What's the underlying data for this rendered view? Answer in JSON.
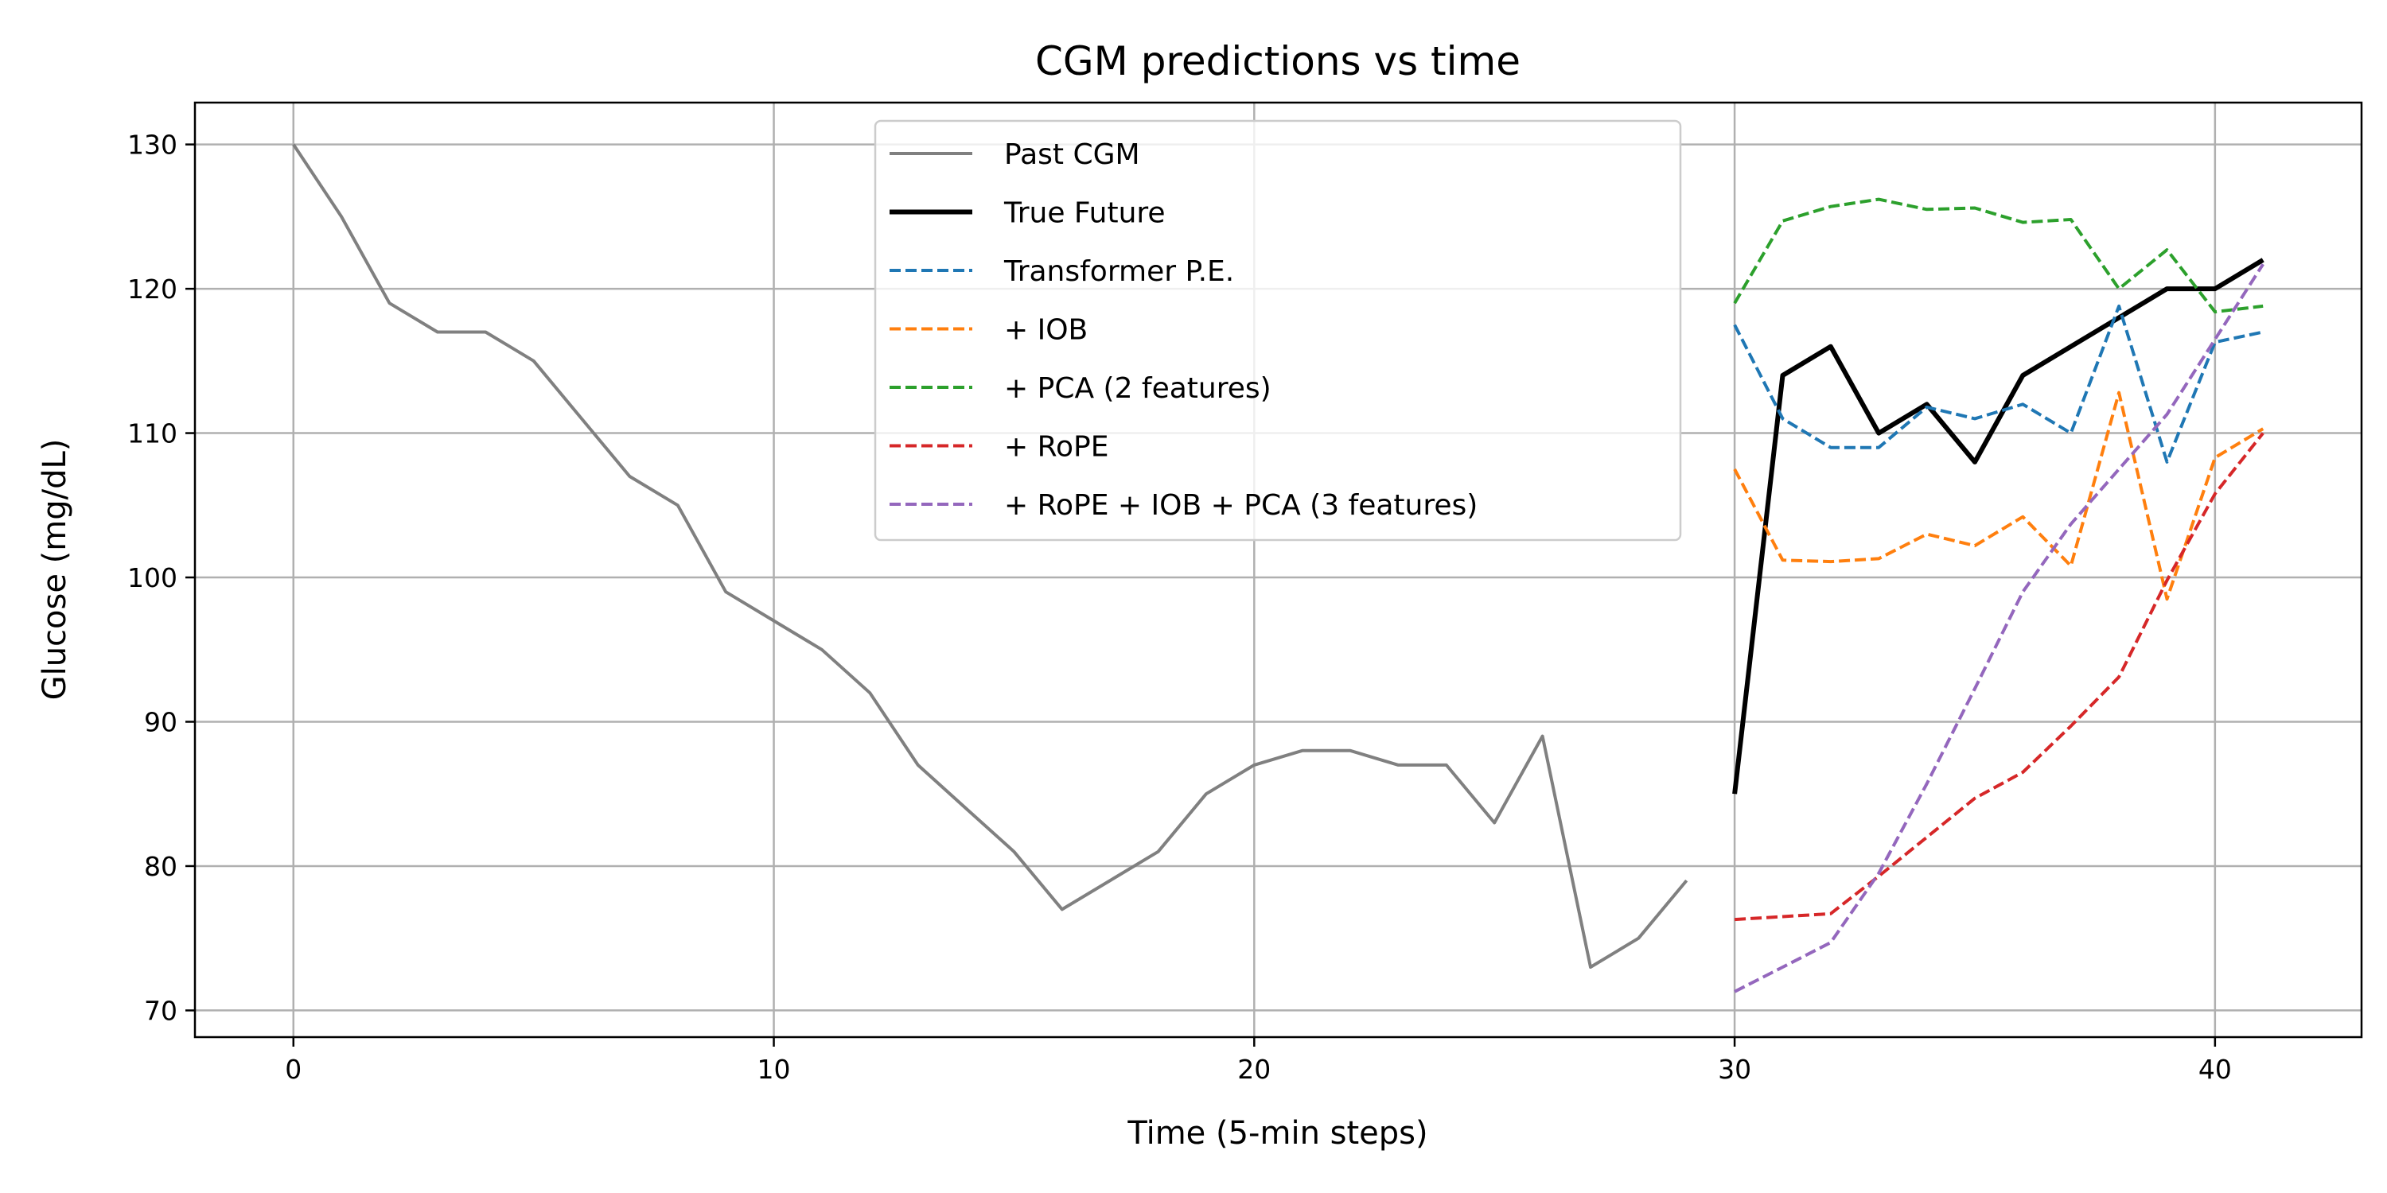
{
  "chart_data": {
    "type": "line",
    "title": "CGM predictions vs time",
    "xlabel": "Time (5-min steps)",
    "ylabel": "Glucose (mg/dL)",
    "xlim": [
      -2.05,
      43.05
    ],
    "ylim": [
      68.15,
      132.9
    ],
    "xticks": [
      0,
      10,
      20,
      30,
      40
    ],
    "yticks": [
      70,
      80,
      90,
      100,
      110,
      120,
      130
    ],
    "grid": true,
    "legend_position": "upper center",
    "series": [
      {
        "name": "Past CGM",
        "color": "#808080",
        "style": "solid",
        "width": "normal",
        "x": [
          0,
          1,
          2,
          3,
          4,
          5,
          6,
          7,
          8,
          9,
          10,
          11,
          12,
          13,
          14,
          15,
          16,
          17,
          18,
          19,
          20,
          21,
          22,
          23,
          24,
          25,
          26,
          27,
          28,
          29
        ],
        "y": [
          130,
          125,
          119,
          117,
          117,
          115,
          111,
          107,
          105,
          99,
          97,
          95,
          92,
          87,
          84,
          81,
          77,
          79,
          81,
          85,
          87,
          88,
          88,
          87,
          87,
          83,
          89,
          73,
          75,
          79
        ]
      },
      {
        "name": "True Future",
        "color": "#000000",
        "style": "solid",
        "width": "thick",
        "x": [
          30,
          31,
          32,
          33,
          34,
          35,
          36,
          37,
          38,
          39,
          40,
          41
        ],
        "y": [
          85,
          114,
          116,
          110,
          112,
          108,
          114,
          116,
          118,
          120,
          120,
          122
        ]
      },
      {
        "name": "Transformer P.E.",
        "color": "#1f77b4",
        "style": "dashed",
        "width": "normal",
        "x": [
          30,
          31,
          32,
          33,
          34,
          35,
          36,
          37,
          38,
          39,
          40,
          41
        ],
        "y": [
          117.5,
          111,
          109,
          109,
          111.8,
          111,
          112,
          110,
          118.8,
          108,
          116.3,
          117
        ]
      },
      {
        "name": "+ IOB",
        "color": "#ff7f0e",
        "style": "dashed",
        "width": "normal",
        "x": [
          30,
          31,
          32,
          33,
          34,
          35,
          36,
          37,
          38,
          39,
          40,
          41
        ],
        "y": [
          107.5,
          101.2,
          101.1,
          101.3,
          103,
          102.2,
          104.2,
          100.8,
          112.8,
          98.5,
          108.3,
          110.3
        ]
      },
      {
        "name": "+ PCA (2 features)",
        "color": "#2ca02c",
        "style": "dashed",
        "width": "normal",
        "x": [
          30,
          31,
          32,
          33,
          34,
          35,
          36,
          37,
          38,
          39,
          40,
          41
        ],
        "y": [
          119,
          124.7,
          125.7,
          126.2,
          125.5,
          125.6,
          124.6,
          124.8,
          120,
          122.7,
          118.4,
          118.8
        ]
      },
      {
        "name": "+ RoPE",
        "color": "#d62728",
        "style": "dashed",
        "width": "normal",
        "x": [
          30,
          31,
          32,
          33,
          34,
          35,
          36,
          37,
          38,
          39,
          40,
          41
        ],
        "y": [
          76.3,
          76.5,
          76.7,
          79.3,
          82,
          84.7,
          86.5,
          89.7,
          93.1,
          99.8,
          105.8,
          110
        ]
      },
      {
        "name": "+ RoPE + IOB + PCA (3 features)",
        "color": "#9467bd",
        "style": "dashed",
        "width": "normal",
        "x": [
          30,
          31,
          32,
          33,
          34,
          35,
          36,
          37,
          38,
          39,
          40,
          41
        ],
        "y": [
          71.3,
          73,
          74.7,
          79.5,
          85.7,
          92.3,
          99,
          103.7,
          107.5,
          111.3,
          116.5,
          121.7
        ]
      }
    ]
  }
}
